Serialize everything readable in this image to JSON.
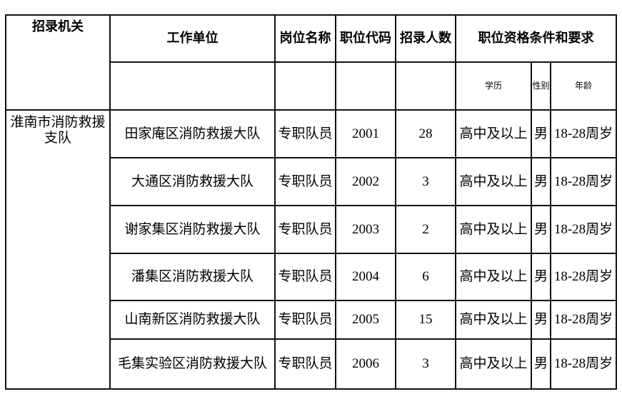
{
  "headers": {
    "agency": "招录机关",
    "unit": "工作单位",
    "position_name": "岗位名称",
    "position_code": "职位代码",
    "count": "招录人数",
    "requirements": "职位资格条件和要求",
    "education": "学历",
    "gender": "性别",
    "age": "年龄"
  },
  "agency": "淮南市消防救援支队",
  "rows": [
    {
      "unit": "田家庵区消防救援大队",
      "position": "专职队员",
      "code": "2001",
      "count": "28",
      "education": "高中及以上",
      "gender": "男",
      "age": "18-28周岁"
    },
    {
      "unit": "大通区消防救援大队",
      "position": "专职队员",
      "code": "2002",
      "count": "3",
      "education": "高中及以上",
      "gender": "男",
      "age": "18-28周岁"
    },
    {
      "unit": "谢家集区消防救援大队",
      "position": "专职队员",
      "code": "2003",
      "count": "2",
      "education": "高中及以上",
      "gender": "男",
      "age": "18-28周岁"
    },
    {
      "unit": "潘集区消防救援大队",
      "position": "专职队员",
      "code": "2004",
      "count": "6",
      "education": "高中及以上",
      "gender": "男",
      "age": "18-28周岁"
    },
    {
      "unit": "山南新区消防救援大队",
      "position": "专职队员",
      "code": "2005",
      "count": "15",
      "education": "高中及以上",
      "gender": "男",
      "age": "18-28周岁"
    },
    {
      "unit": "毛集实验区消防救援大队",
      "position": "专职队员",
      "code": "2006",
      "count": "3",
      "education": "高中及以上",
      "gender": "男",
      "age": "18-28周岁"
    }
  ]
}
